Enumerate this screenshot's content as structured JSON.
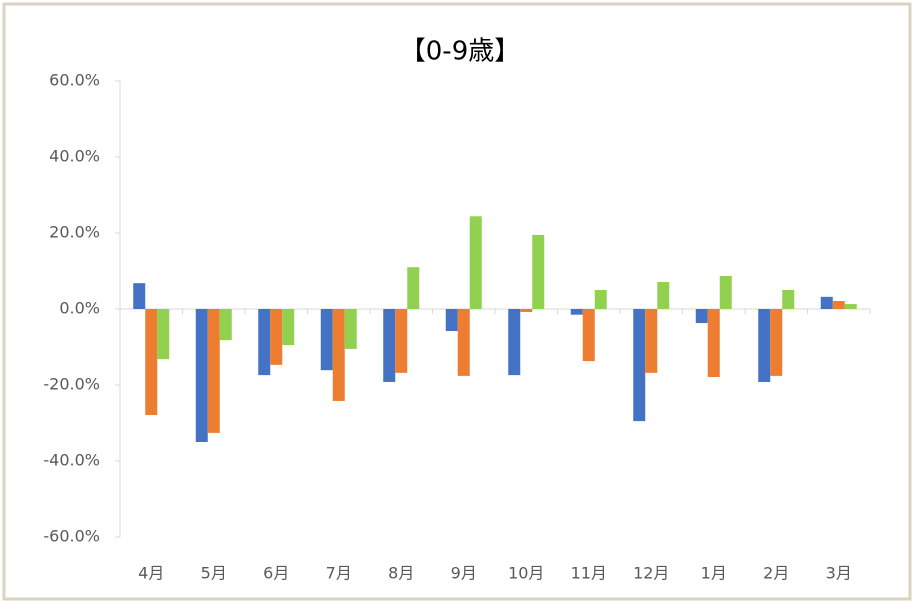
{
  "chart_data": {
    "type": "bar",
    "title": "【0-9歳】",
    "categories": [
      "4月",
      "5月",
      "6月",
      "7月",
      "8月",
      "9月",
      "10月",
      "11月",
      "12月",
      "1月",
      "2月",
      "3月"
    ],
    "series": [
      {
        "color": "#4472c4",
        "values": [
          6.8,
          -35,
          -17.4,
          -16.1,
          -19.2,
          -5.8,
          -17.4,
          -1.5,
          -29.5,
          -3.7,
          -19.2,
          3.2
        ]
      },
      {
        "color": "#ed7d31",
        "values": [
          -27.9,
          -32.6,
          -14.7,
          -24.2,
          -16.8,
          -17.6,
          -0.8,
          -13.7,
          -16.8,
          -17.9,
          -17.6,
          2.1
        ]
      },
      {
        "color": "#92d050",
        "values": [
          -13.2,
          -8.2,
          -9.5,
          -10.5,
          11,
          24.4,
          19.5,
          5,
          7.1,
          8.7,
          5,
          1.3
        ]
      }
    ],
    "ylim": [
      -60,
      60
    ],
    "yticks": [
      {
        "value": -60,
        "label": "-60.0%"
      },
      {
        "value": -40,
        "label": "-40.0%"
      },
      {
        "value": -20,
        "label": "-20.0%"
      },
      {
        "value": 0,
        "label": "0.0%"
      },
      {
        "value": 20,
        "label": "20.0%"
      },
      {
        "value": 40,
        "label": "40.0%"
      },
      {
        "value": 60,
        "label": "60.0%"
      }
    ],
    "grid": false
  }
}
